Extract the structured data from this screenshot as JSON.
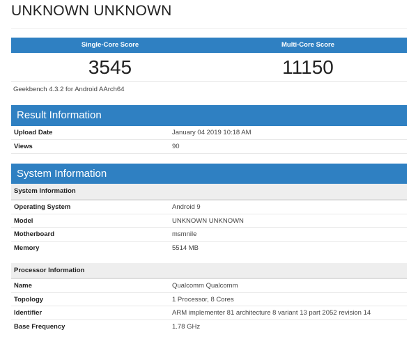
{
  "title": "UNKNOWN UNKNOWN",
  "scores": {
    "single_label": "Single-Core Score",
    "multi_label": "Multi-Core Score",
    "single": "3545",
    "multi": "11150"
  },
  "version": "Geekbench 4.3.2 for Android AArch64",
  "result": {
    "header": "Result Information",
    "rows": [
      {
        "k": "Upload Date",
        "v": "January 04 2019 10:18 AM"
      },
      {
        "k": "Views",
        "v": "90"
      }
    ]
  },
  "system": {
    "header": "System Information",
    "sys_sub": "System Information",
    "sys_rows": [
      {
        "k": "Operating System",
        "v": "Android 9"
      },
      {
        "k": "Model",
        "v": "UNKNOWN UNKNOWN"
      },
      {
        "k": "Motherboard",
        "v": "msmnile"
      },
      {
        "k": "Memory",
        "v": "5514 MB"
      }
    ],
    "proc_sub": "Processor Information",
    "proc_rows": [
      {
        "k": "Name",
        "v": "Qualcomm Qualcomm"
      },
      {
        "k": "Topology",
        "v": "1 Processor, 8 Cores"
      },
      {
        "k": "Identifier",
        "v": "ARM implementer 81 architecture 8 variant 13 part 2052 revision 14"
      },
      {
        "k": "Base Frequency",
        "v": "1.78 GHz"
      }
    ]
  },
  "colors": {
    "header_blue": "#2f80c2"
  }
}
